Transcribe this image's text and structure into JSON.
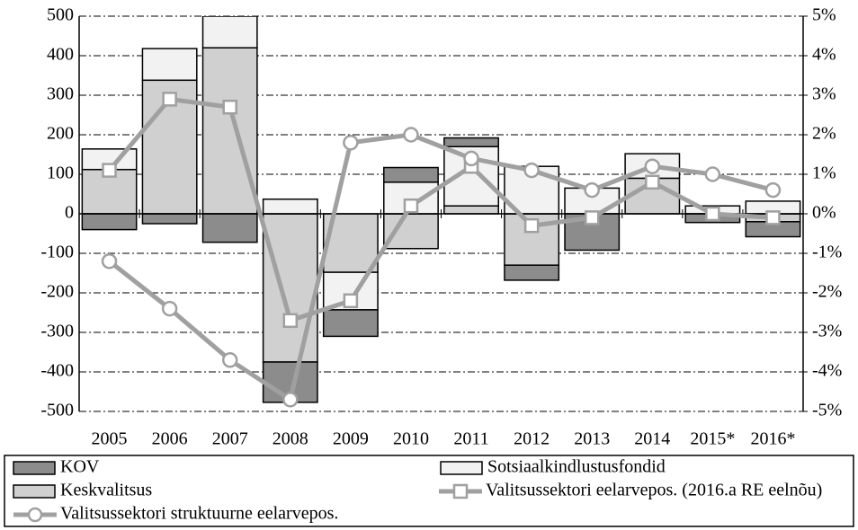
{
  "chart_data": {
    "type": "bar",
    "stacked": true,
    "categories": [
      "2005",
      "2006",
      "2007",
      "2008",
      "2009",
      "2010",
      "2011",
      "2012",
      "2013",
      "2014",
      "2015*",
      "2016*"
    ],
    "series": [
      {
        "name": "Keskvalitsus",
        "color": "#d0d0d0",
        "values": [
          112,
          338,
          420,
          -375,
          -148,
          -88,
          20,
          -130,
          0,
          90,
          0,
          -20
        ]
      },
      {
        "name": "Sotsiaalkindlustusfondid",
        "color": "#f2f2f2",
        "values": [
          52,
          80,
          80,
          37,
          -95,
          80,
          150,
          120,
          65,
          62,
          20,
          32
        ]
      },
      {
        "name": "KOV",
        "color": "#8c8c8c",
        "values": [
          -40,
          -25,
          -72,
          -102,
          -67,
          37,
          22,
          -38,
          -92,
          0,
          -22,
          -38
        ]
      },
      {
        "name": "Valitsussektori eelarvepos. (2016.a RE eelnõu)",
        "type": "line",
        "axis": "y2",
        "marker": "square",
        "color": "#a0a0a0",
        "values": [
          1.1,
          2.9,
          2.7,
          -2.7,
          -2.2,
          0.2,
          1.2,
          -0.3,
          -0.1,
          0.8,
          0.0,
          -0.1
        ]
      },
      {
        "name": "Valitsussektori struktuurne eelarvepos.",
        "type": "line",
        "axis": "y2",
        "marker": "circle",
        "color": "#a0a0a0",
        "values": [
          -1.2,
          -2.4,
          -3.7,
          -4.7,
          1.8,
          2.0,
          1.4,
          1.1,
          0.6,
          1.2,
          1.0,
          0.6
        ]
      }
    ],
    "ylim": [
      -500,
      500
    ],
    "yticks": [
      500,
      400,
      300,
      200,
      100,
      0,
      -100,
      -200,
      -300,
      -400,
      -500
    ],
    "y2lim": [
      -5,
      5
    ],
    "y2ticks": [
      {
        "value": 5,
        "label": "5%"
      },
      {
        "value": 4,
        "label": "4%"
      },
      {
        "value": 3,
        "label": "3%"
      },
      {
        "value": 2,
        "label": "2%"
      },
      {
        "value": 1,
        "label": "1%"
      },
      {
        "value": 0,
        "label": "0%"
      },
      {
        "value": -1,
        "label": "-1%"
      },
      {
        "value": -2,
        "label": "-2%"
      },
      {
        "value": -3,
        "label": "-3%"
      },
      {
        "value": -4,
        "label": "-4%"
      },
      {
        "value": -5,
        "label": "-5%"
      }
    ],
    "grid": true,
    "legend": "bottom"
  }
}
